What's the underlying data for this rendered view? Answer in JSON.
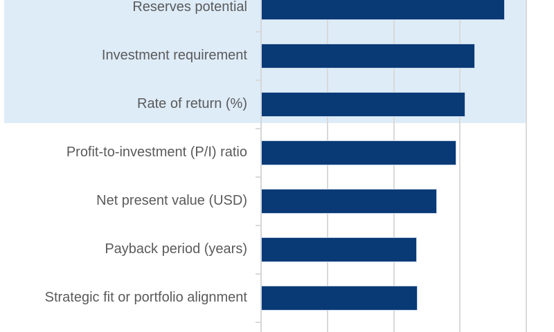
{
  "chart_data": {
    "type": "bar",
    "orientation": "horizontal",
    "title": "",
    "xlabel": "",
    "ylabel": "",
    "categories": [
      "Reserves potential",
      "Investment requirement",
      "Rate of return (%)",
      "Profit-to-investment (P/I) ratio",
      "Net present value (USD)",
      "Payback period (years)",
      "Strategic fit or portfolio alignment"
    ],
    "values": [
      3.68,
      3.23,
      3.08,
      2.94,
      2.65,
      2.35,
      2.36
    ],
    "highlighted_categories": [
      "Reserves potential",
      "Investment requirement",
      "Rate of return (%)"
    ],
    "xlim": [
      0,
      4.42
    ],
    "gridline_interval": 1,
    "grid": true,
    "legend": false,
    "axis_tick_labels_visible": false,
    "note": "Cropped chart: top bar partially clipped, no numeric axis labels or title visible; values estimated from unlabeled gridlines (1 unit per gridline)."
  },
  "style": {
    "bar_color": "#093a76",
    "bar_border_color": "#c8d6ea",
    "highlight_band_color": "#deecf8",
    "gridline_color": "#d9d9d9",
    "axis_color": "#d6d6d6",
    "tick_color": "#d9d9d9",
    "label_color": "#5a5a5a",
    "background_color": "#ffffff"
  }
}
